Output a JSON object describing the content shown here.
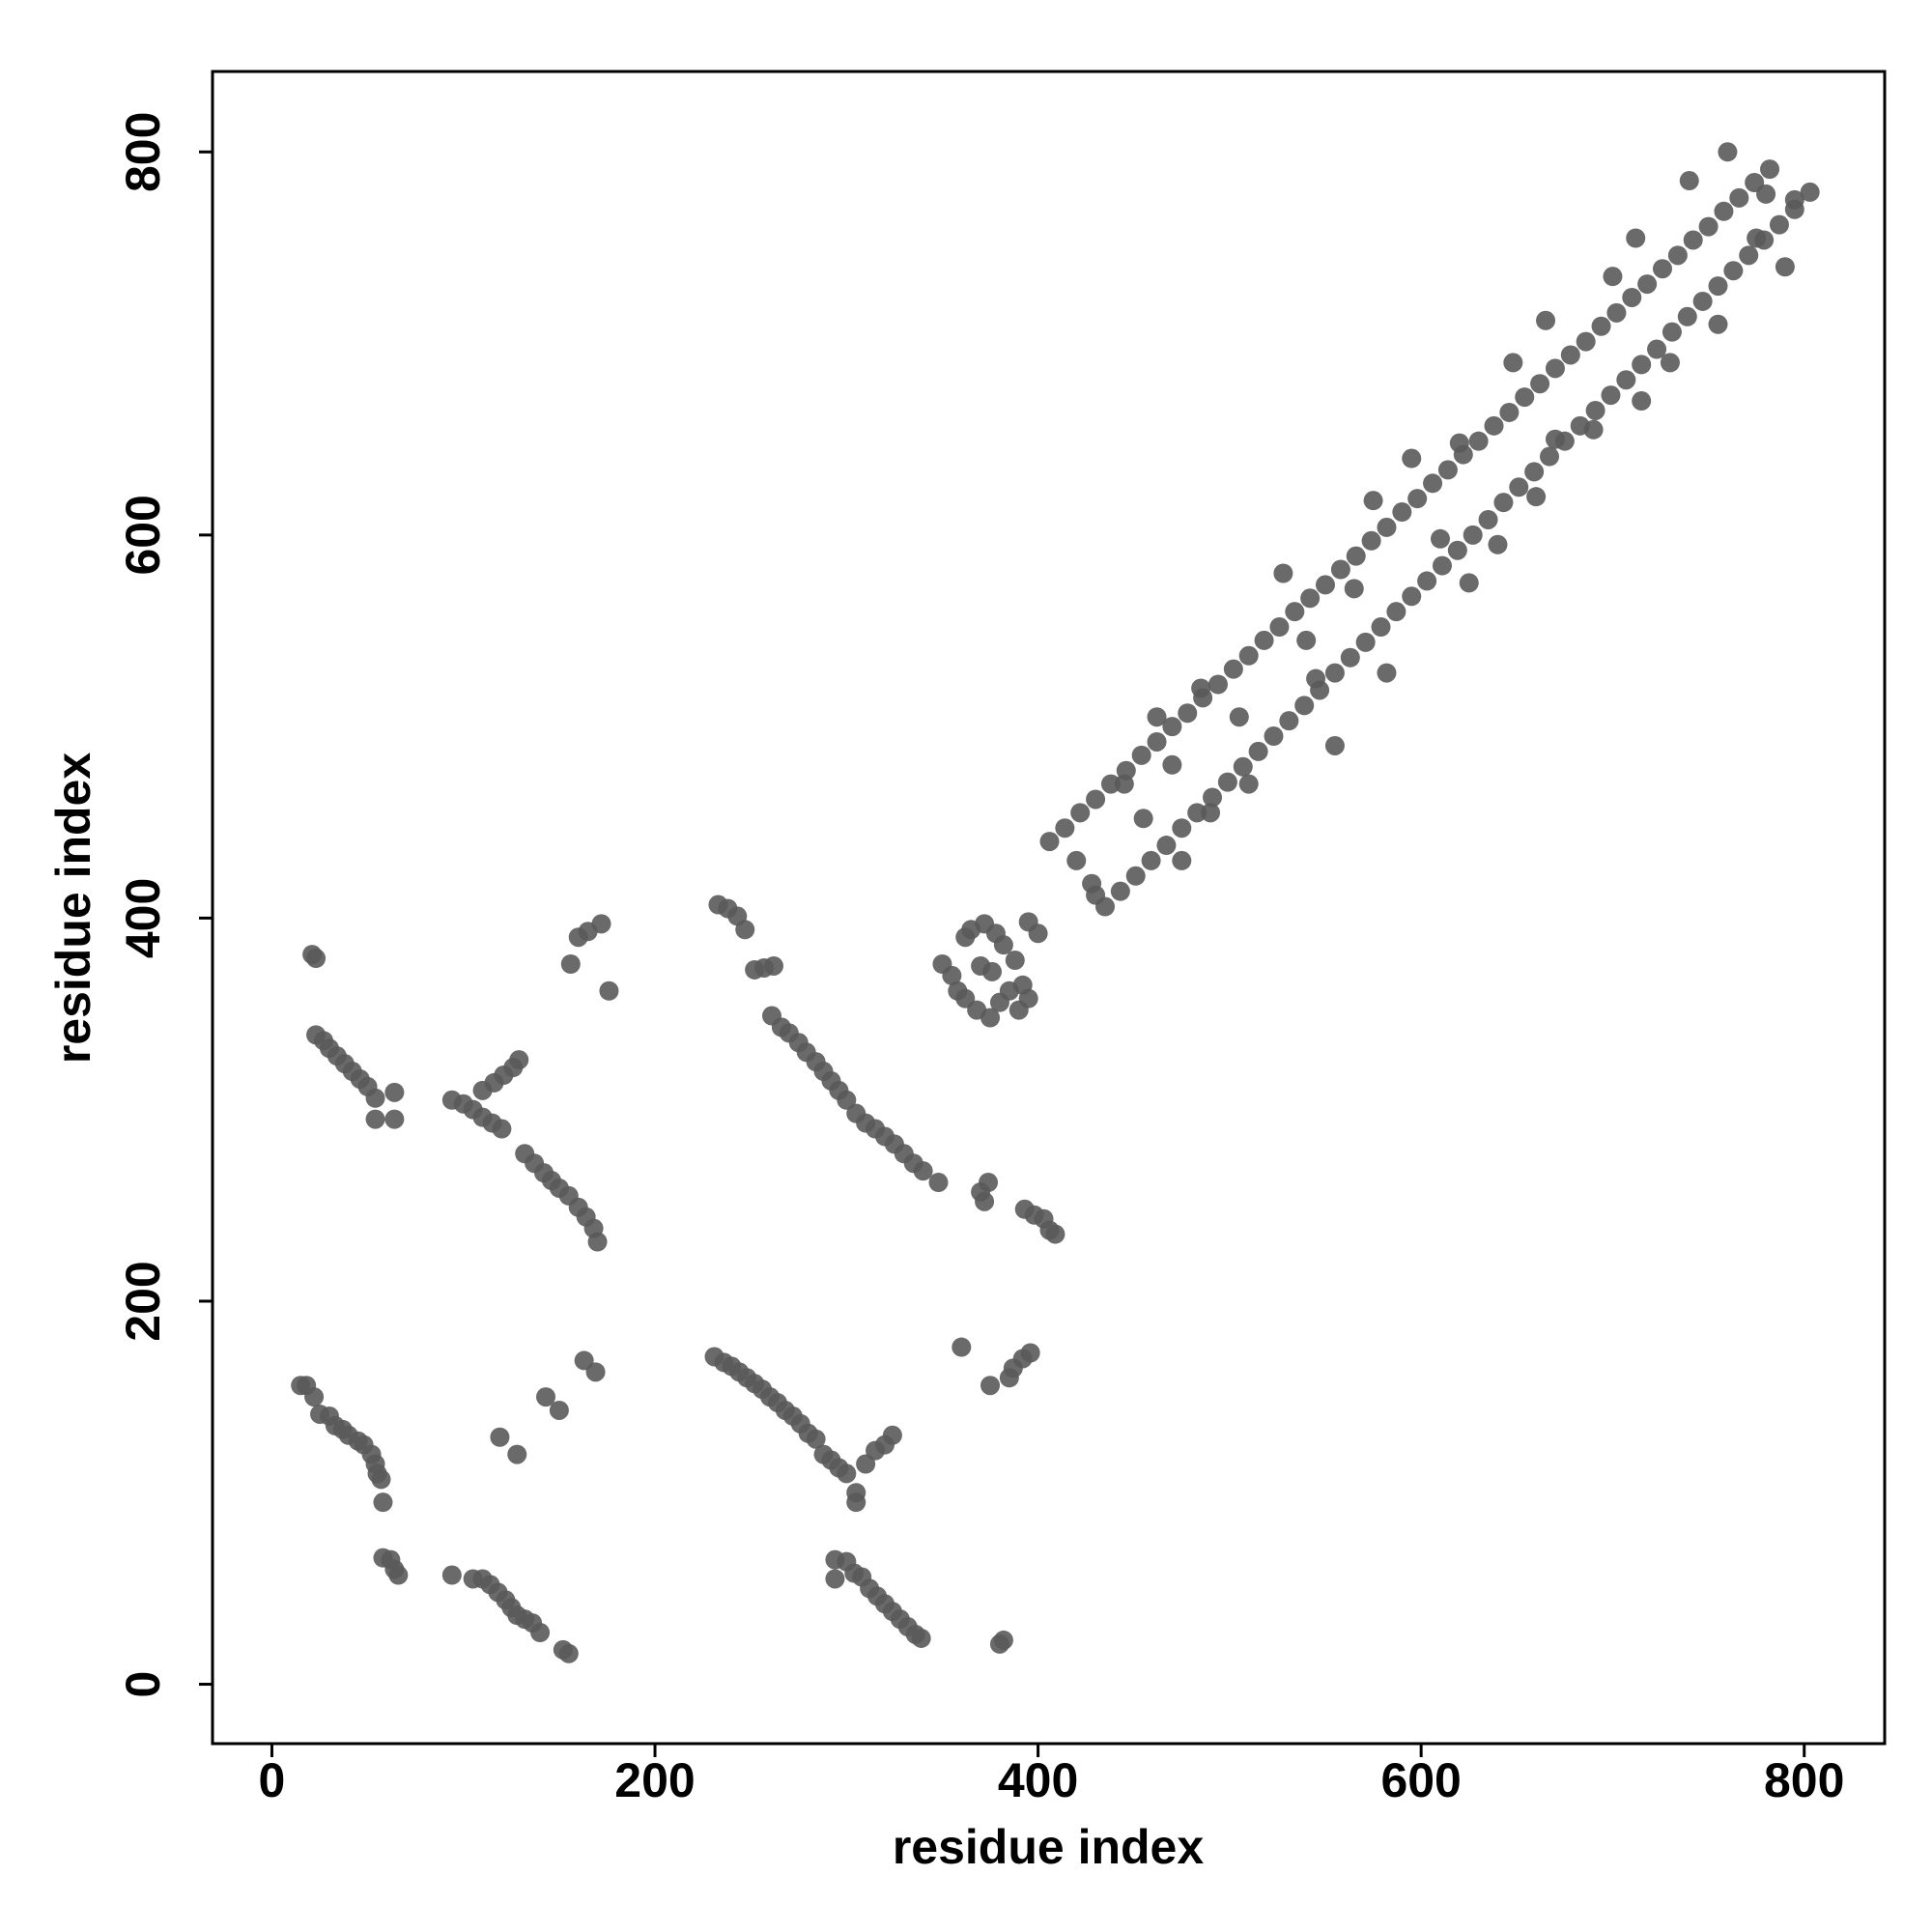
{
  "chart_data": {
    "type": "scatter",
    "xlabel": "residue index",
    "ylabel": "residue index",
    "color": "#5a5a5a",
    "xlim": [
      -31,
      842
    ],
    "ylim": [
      -31,
      842
    ],
    "xticks": [
      0,
      200,
      400,
      600,
      800
    ],
    "yticks": [
      0,
      200,
      400,
      600,
      800
    ],
    "x": [
      406,
      414,
      422,
      430,
      438,
      446,
      454,
      462,
      470,
      478,
      486,
      494,
      502,
      510,
      518,
      526,
      534,
      542,
      550,
      558,
      566,
      574,
      582,
      590,
      598,
      606,
      614,
      622,
      630,
      638,
      646,
      654,
      662,
      670,
      678,
      686,
      694,
      702,
      710,
      718,
      726,
      734,
      742,
      750,
      758,
      766,
      774,
      782,
      435,
      443,
      451,
      459,
      467,
      475,
      483,
      491,
      499,
      507,
      515,
      523,
      531,
      539,
      547,
      555,
      563,
      571,
      579,
      587,
      595,
      603,
      611,
      619,
      627,
      635,
      643,
      651,
      659,
      667,
      675,
      683,
      691,
      699,
      707,
      715,
      723,
      731,
      739,
      747,
      755,
      763,
      771,
      779,
      787,
      795,
      803,
      420,
      428,
      430,
      445,
      455,
      462,
      470,
      475,
      485,
      490,
      505,
      510,
      528,
      540,
      545,
      555,
      565,
      575,
      582,
      595,
      610,
      620,
      625,
      640,
      648,
      660,
      665,
      670,
      690,
      700,
      712,
      715,
      730,
      740,
      755,
      775,
      780,
      790,
      760,
      795,
      350,
      355,
      358,
      362,
      368,
      375,
      380,
      385,
      392,
      395,
      390,
      365,
      372,
      378,
      382,
      388,
      370,
      376,
      362,
      395,
      400,
      15,
      18,
      22,
      25,
      30,
      33,
      37,
      40,
      45,
      48,
      52,
      54,
      55,
      57,
      58,
      58,
      62,
      66,
      64,
      94,
      105,
      110,
      114,
      118,
      122,
      125,
      128,
      132,
      136,
      140,
      152,
      155,
      119,
      128,
      143,
      150,
      163,
      169,
      231,
      236,
      240,
      244,
      248,
      252,
      256,
      260,
      264,
      268,
      272,
      276,
      280,
      284,
      288,
      292,
      296,
      300,
      305,
      305,
      310,
      315,
      320,
      324,
      294,
      294,
      300,
      304,
      308,
      312,
      316,
      320,
      324,
      328,
      332,
      336,
      339,
      380,
      382,
      360,
      375,
      385,
      387,
      392,
      396,
      21,
      23,
      23,
      27,
      30,
      34,
      38,
      42,
      46,
      50,
      54,
      64,
      54,
      64,
      94,
      100,
      105,
      110,
      115,
      120,
      110,
      116,
      121,
      126,
      129,
      132,
      137,
      142,
      146,
      150,
      155,
      160,
      164,
      168,
      170,
      156,
      160,
      165,
      172,
      176,
      233,
      238,
      243,
      247,
      252,
      257,
      262,
      261,
      266,
      270,
      275,
      279,
      284,
      288,
      292,
      296,
      300,
      305,
      310,
      315,
      320,
      325,
      330,
      335,
      340,
      348,
      370,
      372,
      374,
      393,
      398,
      403,
      406,
      409
    ],
    "y": [
      440,
      447,
      455,
      462,
      470,
      477,
      485,
      492,
      500,
      507,
      515,
      522,
      530,
      537,
      545,
      552,
      560,
      567,
      574,
      582,
      589,
      597,
      604,
      612,
      619,
      627,
      634,
      642,
      649,
      657,
      664,
      672,
      679,
      687,
      694,
      701,
      709,
      716,
      724,
      731,
      739,
      746,
      754,
      761,
      769,
      776,
      784,
      791,
      406,
      414,
      422,
      430,
      438,
      447,
      455,
      463,
      471,
      479,
      487,
      495,
      503,
      511,
      519,
      528,
      536,
      544,
      552,
      560,
      568,
      576,
      584,
      592,
      600,
      608,
      617,
      625,
      633,
      641,
      649,
      657,
      665,
      673,
      681,
      689,
      697,
      706,
      714,
      722,
      730,
      738,
      746,
      754,
      762,
      770,
      779,
      430,
      418,
      412,
      470,
      452,
      505,
      480,
      430,
      520,
      455,
      505,
      470,
      580,
      545,
      525,
      490,
      572,
      618,
      528,
      640,
      598,
      648,
      575,
      595,
      690,
      620,
      712,
      650,
      655,
      735,
      755,
      670,
      690,
      785,
      710,
      755,
      778,
      740,
      800,
      775,
      376,
      370,
      362,
      358,
      352,
      348,
      356,
      362,
      365,
      358,
      352,
      394,
      397,
      392,
      386,
      378,
      375,
      372,
      390,
      398,
      392,
      156,
      156,
      150,
      141,
      140,
      135,
      133,
      130,
      127,
      125,
      120,
      115,
      110,
      107,
      95,
      66,
      65,
      57,
      60,
      57,
      55,
      55,
      52,
      48,
      44,
      40,
      36,
      34,
      32,
      27,
      18,
      16,
      129,
      120,
      150,
      143,
      169,
      163,
      171,
      168,
      166,
      163,
      160,
      157,
      154,
      150,
      147,
      143,
      140,
      136,
      131,
      128,
      120,
      117,
      113,
      110,
      100,
      95,
      115,
      122,
      125,
      130,
      65,
      55,
      64,
      58,
      56,
      50,
      46,
      42,
      38,
      34,
      30,
      26,
      24,
      21,
      23,
      176,
      156,
      160,
      165,
      170,
      173,
      381,
      379,
      339,
      336,
      332,
      328,
      324,
      320,
      316,
      312,
      306,
      309,
      295,
      295,
      305,
      303,
      300,
      296,
      293,
      290,
      310,
      314,
      318,
      322,
      326,
      277,
      272,
      267,
      263,
      259,
      255,
      249,
      244,
      238,
      231,
      376,
      390,
      393,
      397,
      362,
      407,
      405,
      401,
      394,
      373,
      374,
      375,
      349,
      343,
      340,
      335,
      330,
      325,
      320,
      315,
      310,
      305,
      298,
      293,
      290,
      286,
      282,
      277,
      272,
      268,
      262,
      257,
      252,
      262,
      248,
      245,
      243,
      237,
      235
    ]
  }
}
